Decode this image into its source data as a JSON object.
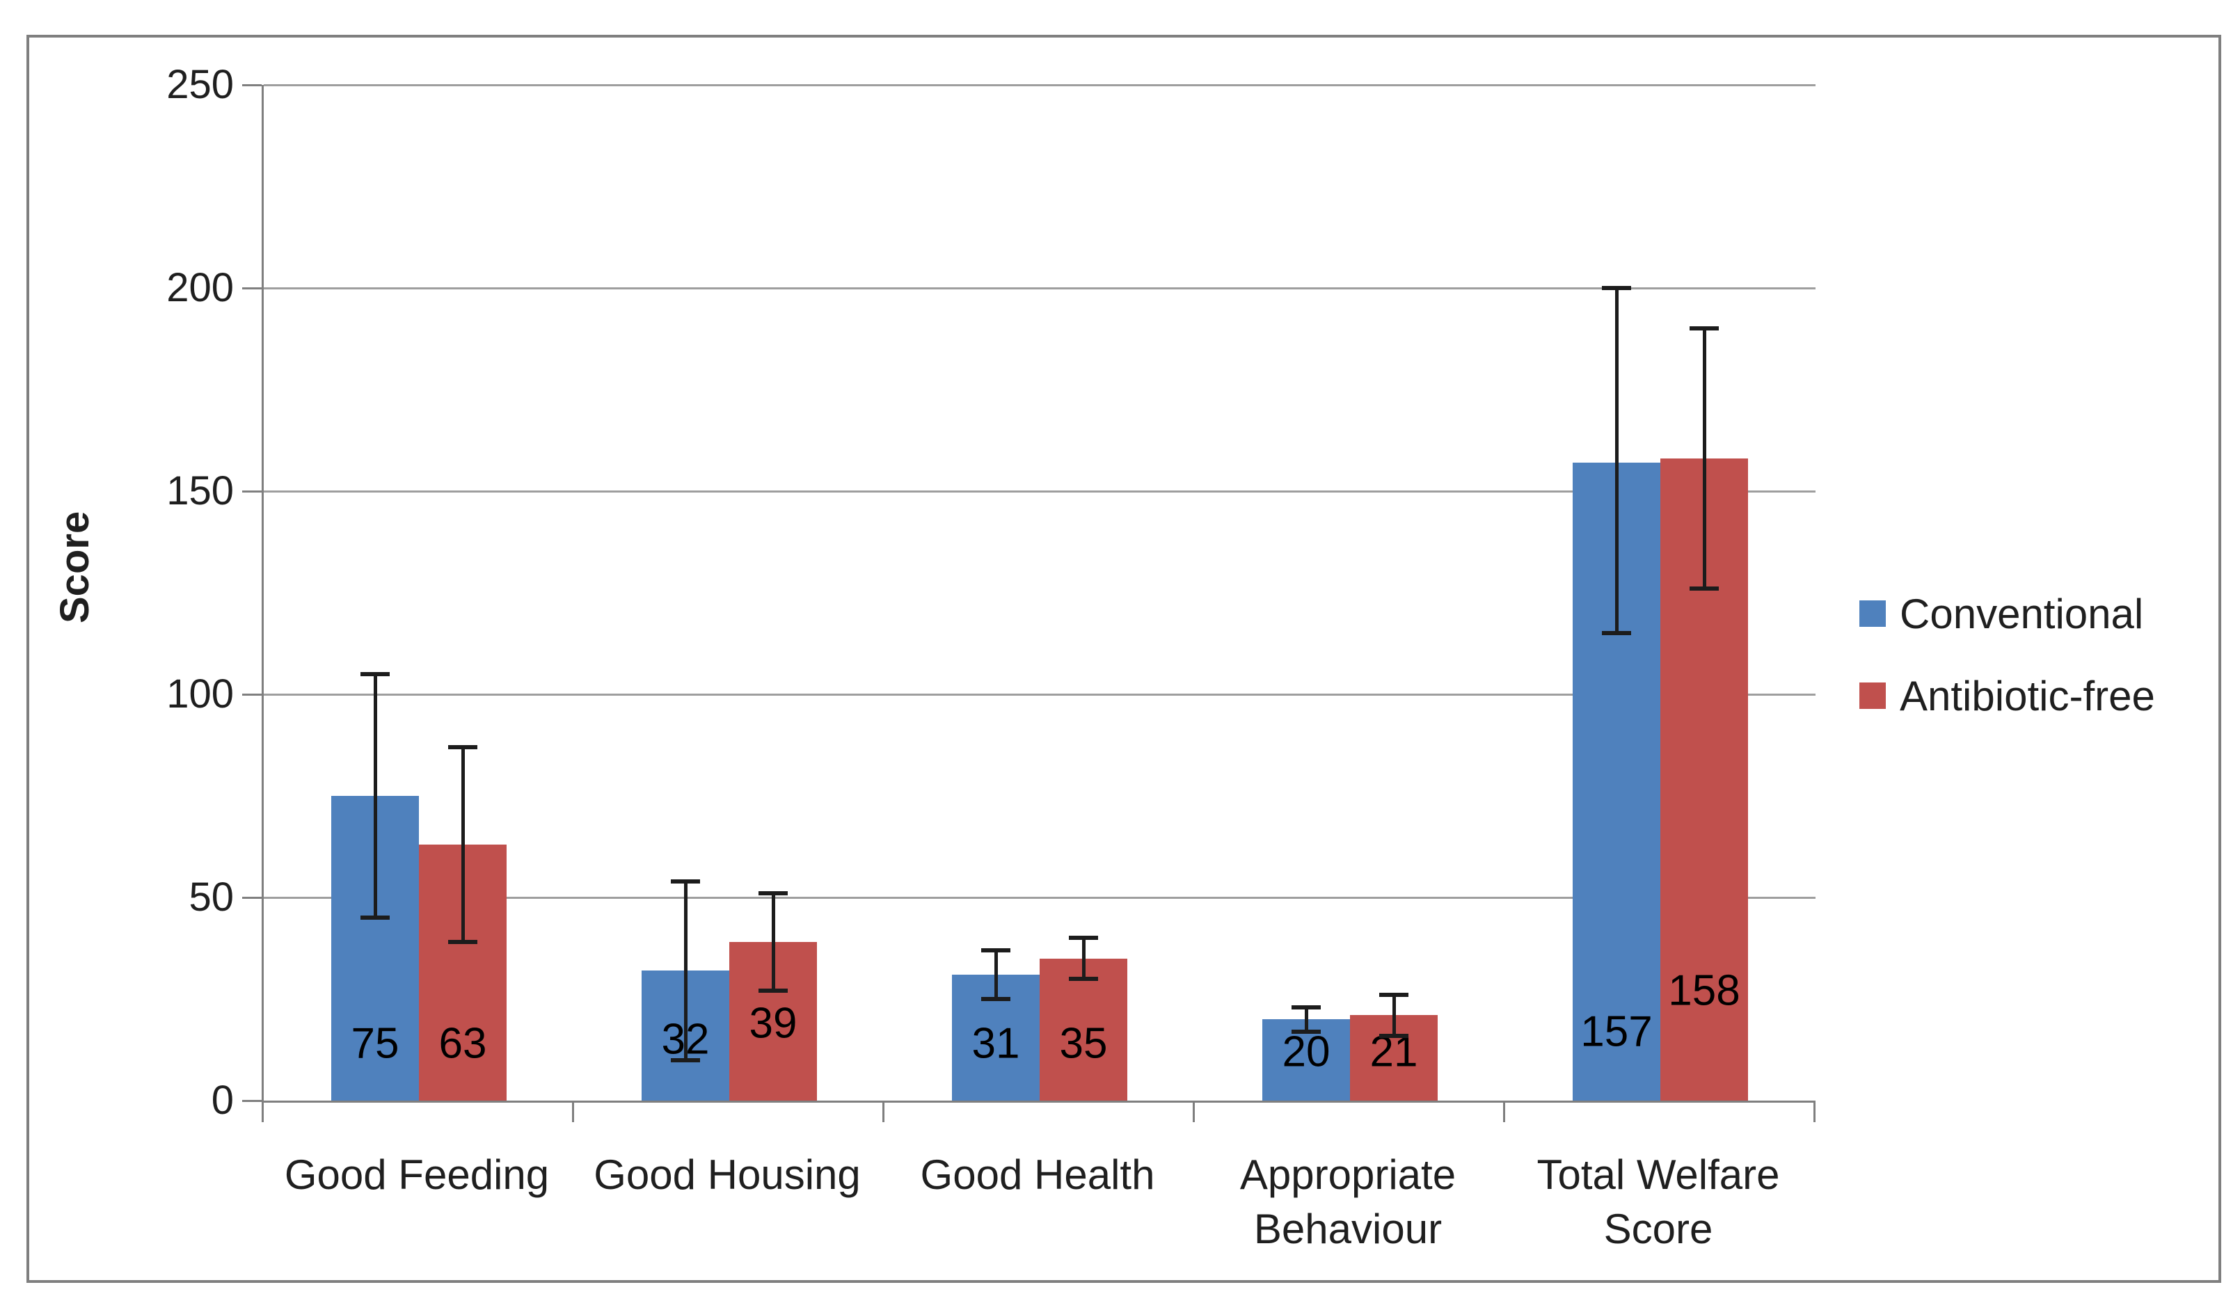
{
  "chart_data": {
    "type": "bar",
    "title": "",
    "xlabel": "",
    "ylabel": "Score",
    "ylim": [
      0,
      250
    ],
    "y_ticks": [
      0,
      50,
      100,
      150,
      200,
      250
    ],
    "grid": true,
    "legend_position": "right",
    "categories": [
      "Good Feeding",
      "Good Housing",
      "Good Health",
      "Appropriate\nBehaviour",
      "Total Welfare\nScore"
    ],
    "series": [
      {
        "name": "Conventional",
        "color": "#4F81BD",
        "values": [
          75,
          32,
          31,
          20,
          157
        ],
        "error_low": [
          45,
          10,
          25,
          17,
          115
        ],
        "error_high": [
          105,
          54,
          37,
          23,
          200
        ],
        "label_y": [
          14,
          15,
          14,
          12,
          17
        ]
      },
      {
        "name": "Antibiotic-free",
        "color": "#C0504D",
        "values": [
          63,
          39,
          35,
          21,
          158
        ],
        "error_low": [
          39,
          27,
          30,
          16,
          126
        ],
        "error_high": [
          87,
          51,
          40,
          26,
          190
        ],
        "label_y": [
          14,
          19,
          14,
          12,
          27
        ]
      }
    ]
  },
  "colors": {
    "axis": "#7f7f7f",
    "gridline": "#9e9e9e",
    "error_bar": "#1c1c1c",
    "text": "#1f1f1f"
  }
}
